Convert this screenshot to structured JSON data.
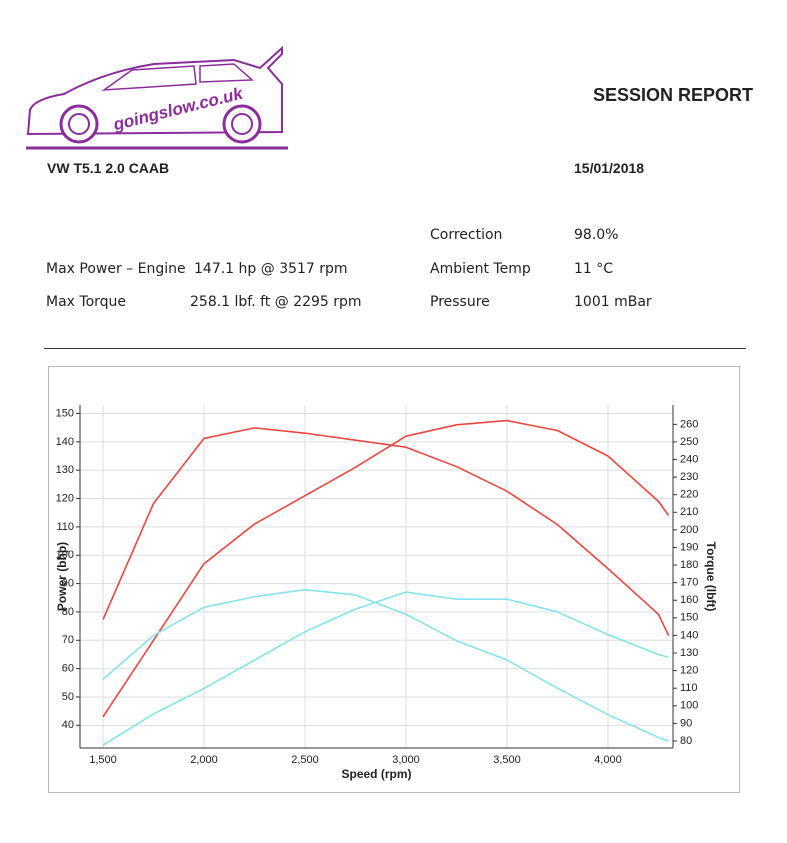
{
  "header": {
    "logo": "goingslow.co.uk",
    "title": "SESSION REPORT",
    "vehicle": "VW T5.1 2.0 CAAB",
    "date": "15/01/2018"
  },
  "info": {
    "rows": [
      {
        "label": "Max Power – Engine",
        "value": "147.1 hp @ 3517 rpm"
      },
      {
        "label": "Max Torque",
        "value": "258.1 lbf. ft @ 2295 rpm"
      }
    ],
    "conditions": [
      {
        "label": "Correction",
        "value": "98.0%"
      },
      {
        "label": "Ambient Temp",
        "value": "11 °C"
      },
      {
        "label": "Pressure",
        "value": "1001 mBar"
      }
    ]
  },
  "chart_data": {
    "type": "line",
    "x_label": "Speed (rpm)",
    "y_label": "Power (bhp)",
    "y2_label": "Torque (lbft)",
    "x": [
      1500,
      1750,
      2000,
      2250,
      2500,
      2750,
      3000,
      3250,
      3500,
      3750,
      4000,
      4250,
      4300
    ],
    "xlim": [
      1386,
      4322
    ],
    "xticks": [
      {
        "value": 1500,
        "label": "1,500"
      },
      {
        "value": 2000,
        "label": "2,000"
      },
      {
        "value": 2500,
        "label": "2,500"
      },
      {
        "value": 3000,
        "label": "3,000"
      },
      {
        "value": 3500,
        "label": "3,500"
      },
      {
        "value": 4000,
        "label": "4,000"
      }
    ],
    "ylim": [
      32,
      153
    ],
    "yticks": [
      40,
      50,
      60,
      70,
      80,
      90,
      100,
      110,
      120,
      130,
      140,
      150
    ],
    "y2lim": [
      76,
      271
    ],
    "y2ticks": [
      80,
      90,
      100,
      110,
      120,
      130,
      140,
      150,
      160,
      170,
      180,
      190,
      200,
      210,
      220,
      230,
      240,
      250,
      260
    ],
    "series": [
      {
        "color": "#e8473f",
        "values": [
          43,
          70,
          97,
          111,
          121,
          131,
          142,
          146,
          147.5,
          144,
          135,
          119,
          114
        ]
      },
      {
        "color": "#e8473f",
        "axis": "y2",
        "values": [
          149,
          215,
          252,
          258,
          255,
          251,
          247,
          236,
          222,
          203,
          178,
          152,
          140
        ]
      },
      {
        "color": "#86e3ea",
        "axis": "y2",
        "values": [
          115,
          140,
          156,
          162,
          166,
          163,
          152,
          137,
          126,
          110,
          95,
          82,
          80
        ]
      },
      {
        "color": "#86e3ea",
        "values": [
          33,
          44,
          53,
          63,
          73,
          81,
          87,
          84.5,
          84.5,
          80,
          72,
          65,
          64
        ]
      }
    ]
  }
}
